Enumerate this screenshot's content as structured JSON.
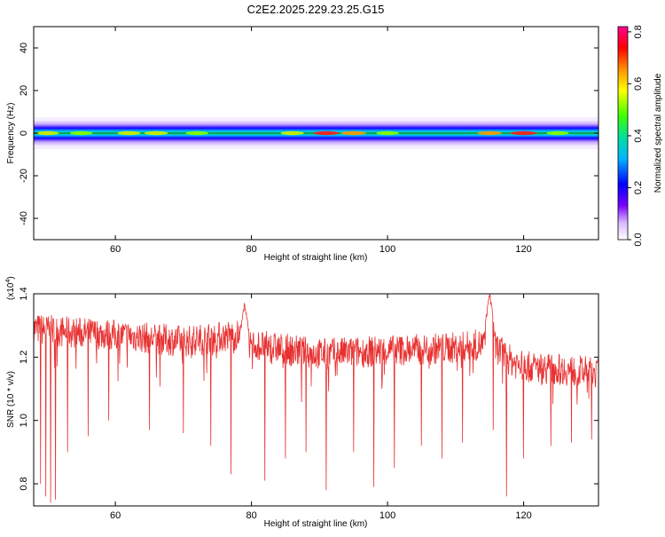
{
  "chart_data": [
    {
      "type": "heatmap",
      "title": "C2E2.2025.229.23.25.G15",
      "xlabel": "Height of straight line (km)",
      "ylabel": "Frequency (Hz)",
      "xlim": [
        48,
        131
      ],
      "ylim": [
        -50,
        50
      ],
      "x_ticks": [
        60,
        80,
        100,
        120
      ],
      "y_ticks": [
        -40,
        -20,
        0,
        20,
        40
      ],
      "band": {
        "center_hz": 0,
        "half_width_hz": 6,
        "hotspots": [
          {
            "x": 50,
            "amp": 0.5
          },
          {
            "x": 55,
            "amp": 0.45
          },
          {
            "x": 62,
            "amp": 0.5
          },
          {
            "x": 66,
            "amp": 0.55
          },
          {
            "x": 72,
            "amp": 0.45
          },
          {
            "x": 86,
            "amp": 0.5
          },
          {
            "x": 91,
            "amp": 0.75
          },
          {
            "x": 95,
            "amp": 0.7
          },
          {
            "x": 100,
            "amp": 0.45
          },
          {
            "x": 115,
            "amp": 0.6
          },
          {
            "x": 120,
            "amp": 0.8
          },
          {
            "x": 125,
            "amp": 0.4
          }
        ]
      },
      "colorbar": {
        "label": "Normalized spectral amplitude",
        "range": [
          0.0,
          0.82
        ],
        "ticks": [
          "0.0",
          "0.2",
          "0.4",
          "0.6",
          "0.8"
        ]
      }
    },
    {
      "type": "line",
      "xlabel": "Height of straight line (km)",
      "ylabel": "SNR (10 * v/v)",
      "y_multiplier": "(x10",
      "y_multiplier_exp": "4",
      "xlim": [
        48,
        131
      ],
      "ylim": [
        0.73,
        1.4
      ],
      "x_ticks": [
        60,
        80,
        100,
        120
      ],
      "y_ticks": [
        "0.8",
        "1.0",
        "1.2",
        "1.4"
      ],
      "series": [
        {
          "color": "#e83030",
          "trend_x": [
            48,
            52,
            60,
            70,
            78,
            80,
            90,
            100,
            110,
            114,
            116,
            118,
            120,
            126,
            131
          ],
          "trend_y": [
            1.29,
            1.28,
            1.27,
            1.25,
            1.27,
            1.24,
            1.21,
            1.22,
            1.23,
            1.24,
            1.23,
            1.19,
            1.17,
            1.16,
            1.15
          ],
          "spikes_up": [
            {
              "x": 79,
              "y": 1.37
            },
            {
              "x": 115,
              "y": 1.4
            }
          ],
          "dips": [
            {
              "x": 49,
              "y": 0.8
            },
            {
              "x": 49.8,
              "y": 0.76
            },
            {
              "x": 50.5,
              "y": 0.74
            },
            {
              "x": 51.2,
              "y": 0.75
            },
            {
              "x": 53,
              "y": 0.9
            },
            {
              "x": 56,
              "y": 0.95
            },
            {
              "x": 59,
              "y": 1.0
            },
            {
              "x": 65,
              "y": 0.97
            },
            {
              "x": 70,
              "y": 0.96
            },
            {
              "x": 74,
              "y": 0.92
            },
            {
              "x": 77,
              "y": 0.83
            },
            {
              "x": 82,
              "y": 0.81
            },
            {
              "x": 85,
              "y": 0.88
            },
            {
              "x": 88,
              "y": 0.9
            },
            {
              "x": 91,
              "y": 0.78
            },
            {
              "x": 95,
              "y": 0.9
            },
            {
              "x": 98,
              "y": 0.79
            },
            {
              "x": 101,
              "y": 0.85
            },
            {
              "x": 105,
              "y": 0.92
            },
            {
              "x": 108,
              "y": 0.88
            },
            {
              "x": 111,
              "y": 0.93
            },
            {
              "x": 115.5,
              "y": 0.97
            },
            {
              "x": 117.5,
              "y": 0.76
            },
            {
              "x": 120,
              "y": 0.88
            },
            {
              "x": 124,
              "y": 0.92
            },
            {
              "x": 127,
              "y": 0.93
            },
            {
              "x": 130,
              "y": 0.94
            }
          ]
        }
      ]
    }
  ]
}
